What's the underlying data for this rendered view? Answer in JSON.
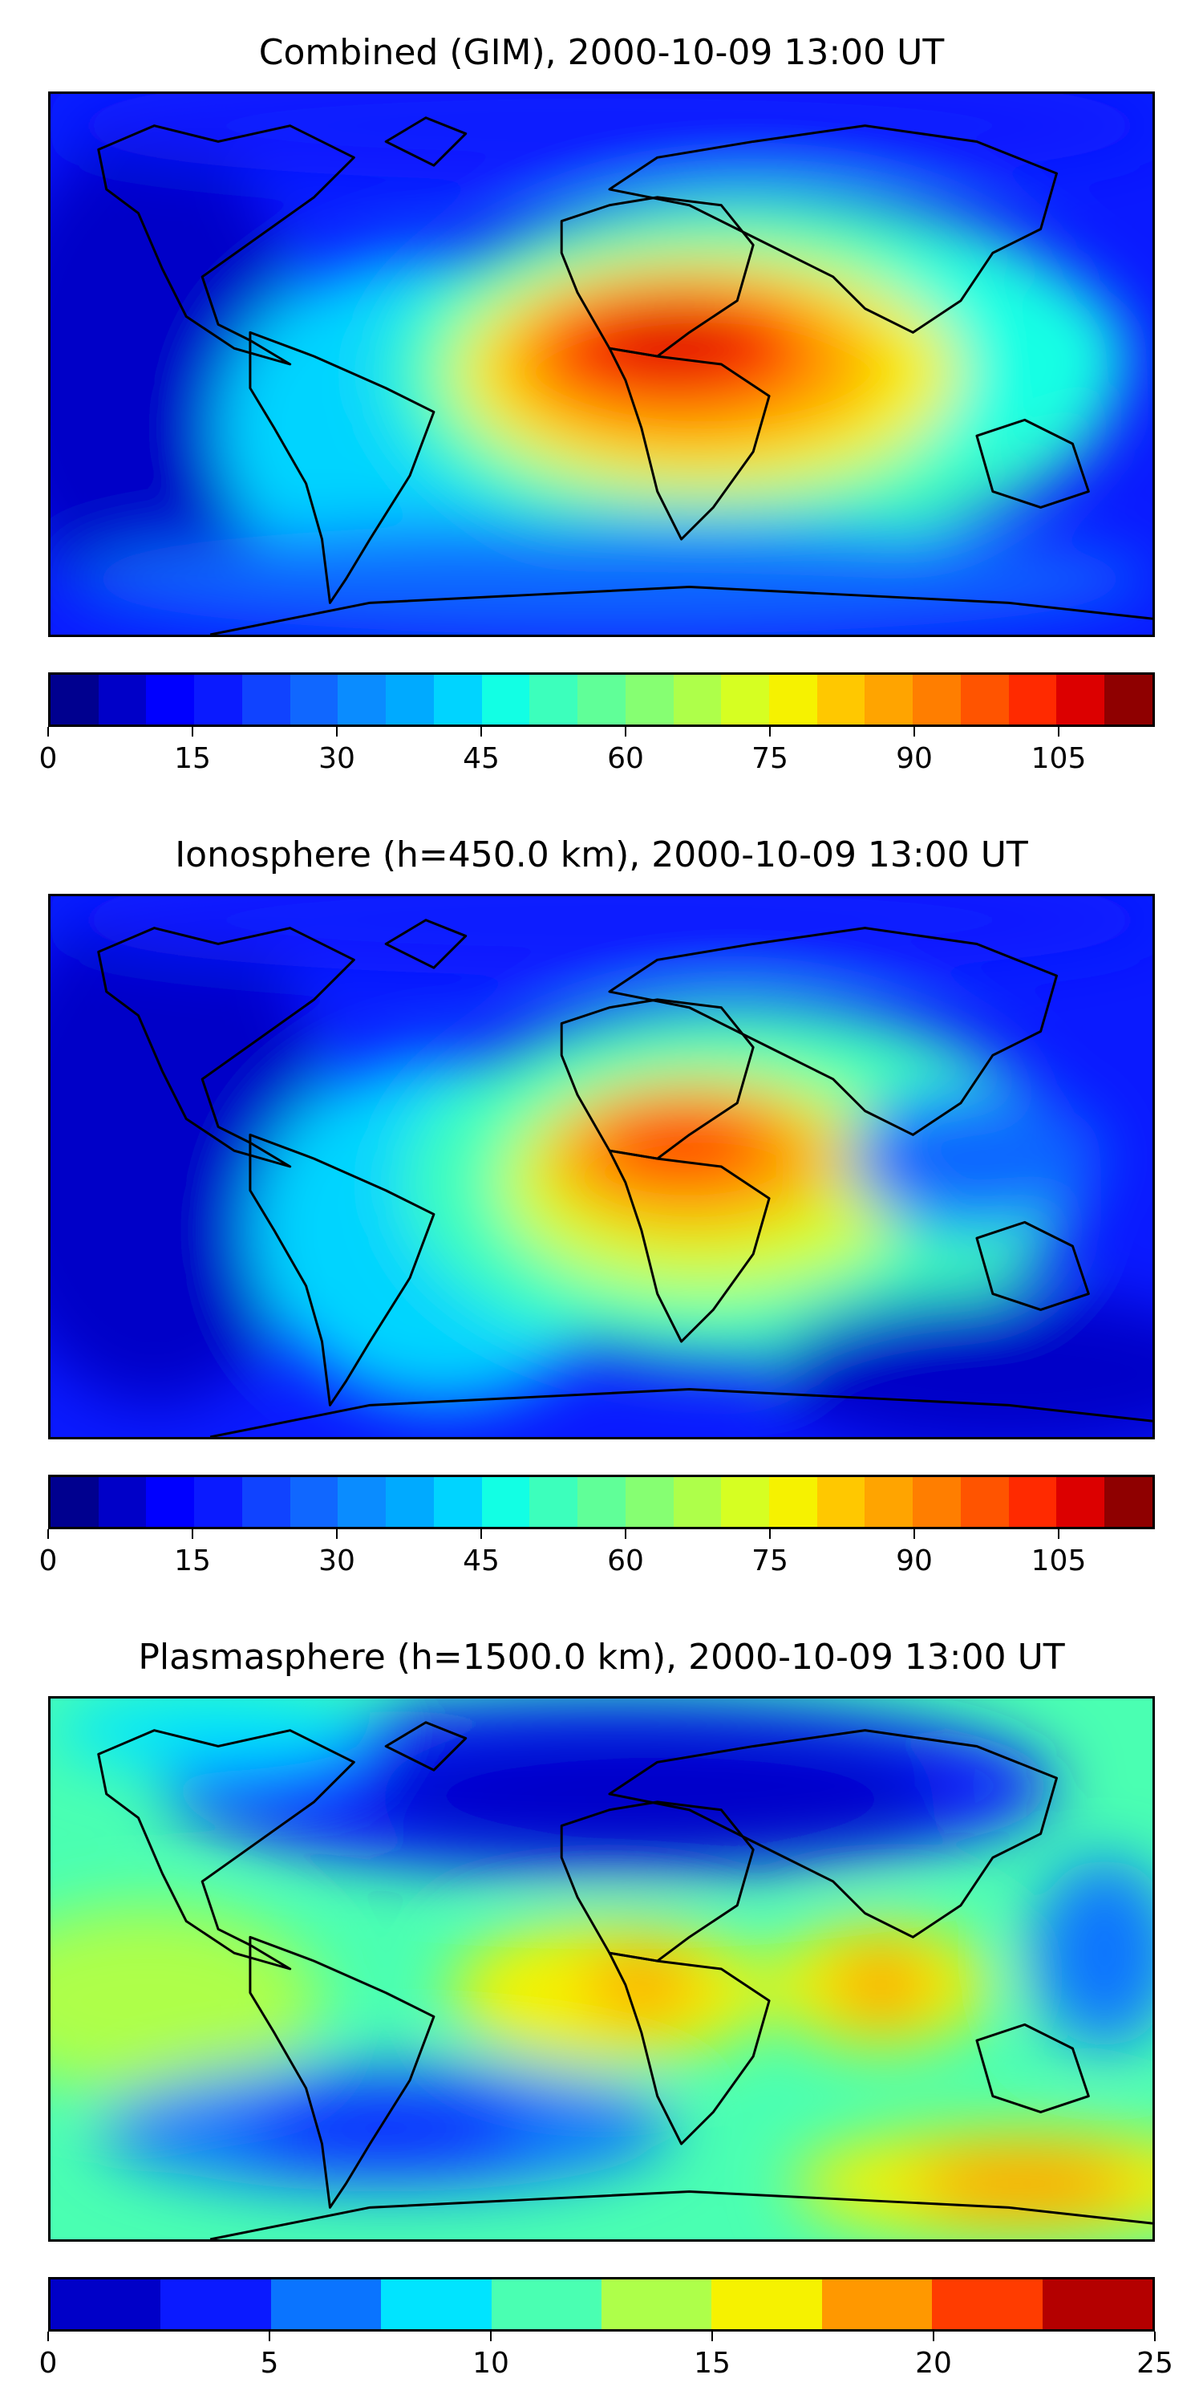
{
  "panels": [
    {
      "title": "Combined (GIM), 2000-10-09 13:00 UT",
      "colorbar": {
        "min": 0,
        "max": 115,
        "levels": 23,
        "tick_values": [
          0,
          15,
          30,
          45,
          60,
          75,
          90,
          105
        ],
        "tick_labels": [
          "0",
          "15",
          "30",
          "45",
          "60",
          "75",
          "90",
          "105"
        ]
      }
    },
    {
      "title": "Ionosphere  (h=450.0 km), 2000-10-09 13:00 UT",
      "colorbar": {
        "min": 0,
        "max": 115,
        "levels": 23,
        "tick_values": [
          0,
          15,
          30,
          45,
          60,
          75,
          90,
          105
        ],
        "tick_labels": [
          "0",
          "15",
          "30",
          "45",
          "60",
          "75",
          "90",
          "105"
        ]
      }
    },
    {
      "title": "Plasmasphere (h=1500.0 km), 2000-10-09 13:00 UT",
      "colorbar": {
        "min": 0,
        "max": 25,
        "levels": 10,
        "tick_values": [
          0,
          5,
          10,
          15,
          20,
          25
        ],
        "tick_labels": [
          "0",
          "5",
          "10",
          "15",
          "20",
          "25"
        ]
      }
    }
  ],
  "colors": {
    "jet_23": [
      "#00008f",
      "#0000c8",
      "#0000ff",
      "#0a1aff",
      "#1043ff",
      "#1067ff",
      "#0a8cff",
      "#00aaff",
      "#00d4ff",
      "#12ffe4",
      "#3cffbc",
      "#60ff98",
      "#86ff72",
      "#aeff4a",
      "#d6ff22",
      "#f6f200",
      "#ffc800",
      "#ffa400",
      "#ff7e00",
      "#ff5400",
      "#ff2a00",
      "#dc0000",
      "#8f0000"
    ],
    "jet_10": [
      "#0000c8",
      "#0a1aff",
      "#0a74ff",
      "#00e4ff",
      "#4affb2",
      "#aeff4a",
      "#f6f200",
      "#ff9800",
      "#ff3c00",
      "#b40000"
    ]
  }
}
